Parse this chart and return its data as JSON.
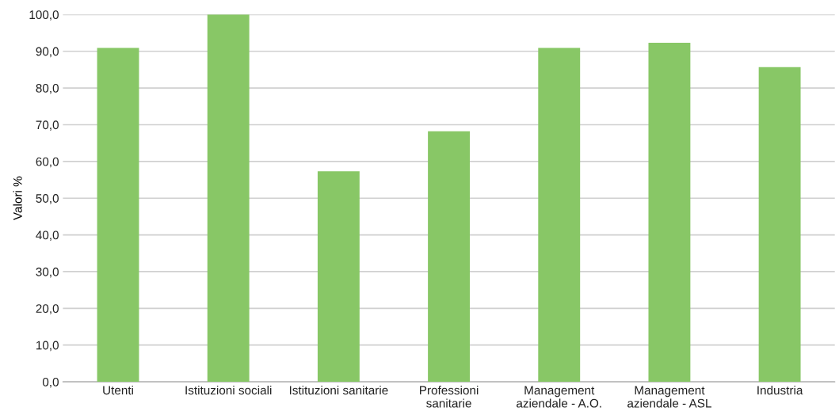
{
  "chart_data": {
    "type": "bar",
    "ylabel": "Valori %",
    "categories": [
      "Utenti",
      "Istituzioni sociali",
      "Istituzioni sanitarie",
      "Professioni\nsanitarie",
      "Management\naziendale - A.O.",
      "Management\naziendale - ASL",
      "Industria"
    ],
    "values": [
      90.9,
      100.0,
      57.3,
      68.2,
      90.9,
      92.3,
      85.7
    ],
    "color": "#88c766",
    "ylim": [
      0,
      100
    ],
    "yticks": [
      {
        "value": 0,
        "label": "0,0"
      },
      {
        "value": 10,
        "label": "10,0"
      },
      {
        "value": 20,
        "label": "20,0"
      },
      {
        "value": 30,
        "label": "30,0"
      },
      {
        "value": 40,
        "label": "40,0"
      },
      {
        "value": 50,
        "label": "50,0"
      },
      {
        "value": 60,
        "label": "60,0"
      },
      {
        "value": 70,
        "label": "70,0"
      },
      {
        "value": 80,
        "label": "80,0"
      },
      {
        "value": 90,
        "label": "90,0"
      },
      {
        "value": 100,
        "label": "100,0"
      }
    ],
    "grid": "y"
  }
}
